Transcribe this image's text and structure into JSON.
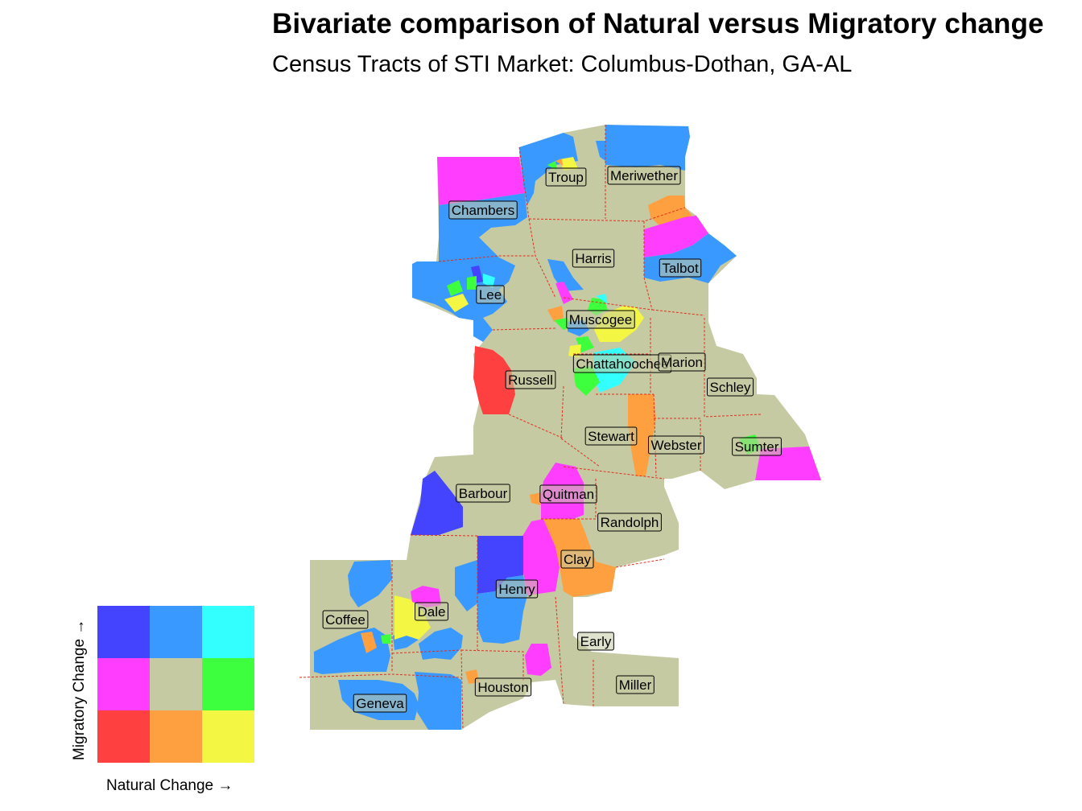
{
  "title": "Bivariate comparison of Natural versus Migratory change",
  "subtitle": "Census Tracts of STI Market: Columbus-Dothan,  GA-AL",
  "palette": {
    "base": "#c5caa3",
    "boundary": "#e0301e",
    "label_fill": "#c5caa3"
  },
  "legend": {
    "x_label": "Natural Change →",
    "y_label": "Migratory Change →",
    "cells": [
      [
        "#4444ff",
        "#3a99ff",
        "#33ffff"
      ],
      [
        "#ff3dff",
        "#c5caa3",
        "#3dff3d"
      ],
      [
        "#ff4040",
        "#ffa040",
        "#f3f642"
      ]
    ]
  },
  "counties": [
    "Troup",
    "Meriwether",
    "Chambers",
    "Harris",
    "Talbot",
    "Lee",
    "Muscogee",
    "Chattahoochee",
    "Marion",
    "Russell",
    "Schley",
    "Stewart",
    "Webster",
    "Sumter",
    "Barbour",
    "Quitman",
    "Randolph",
    "Clay",
    "Henry",
    "Coffee",
    "Dale",
    "Early",
    "Houston",
    "Miller",
    "Geneva"
  ]
}
